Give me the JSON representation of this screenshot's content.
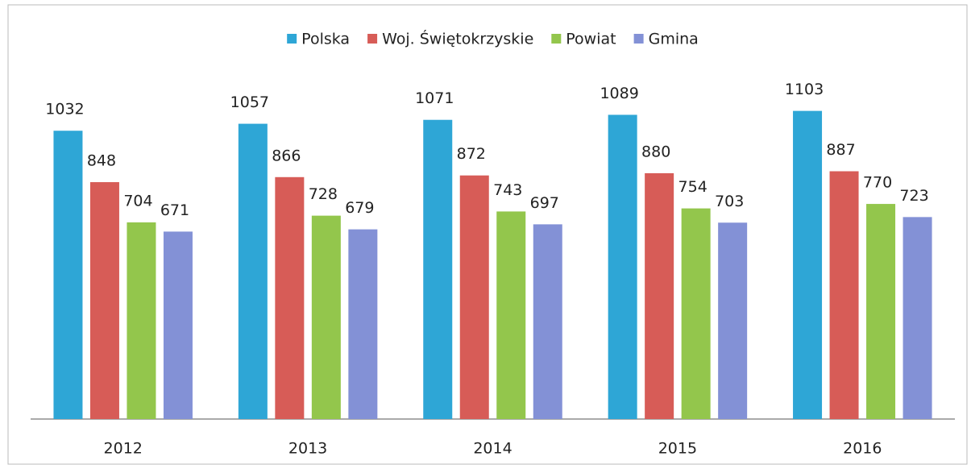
{
  "chart_data": {
    "type": "bar",
    "categories": [
      "2012",
      "2013",
      "2014",
      "2015",
      "2016"
    ],
    "series": [
      {
        "name": "Polska",
        "color": "#2ea6d6",
        "values": [
          1032,
          1057,
          1071,
          1089,
          1103
        ]
      },
      {
        "name": "Woj. Świętokrzyskie",
        "color": "#d75c57",
        "values": [
          848,
          866,
          872,
          880,
          887
        ]
      },
      {
        "name": "Powiat",
        "color": "#93c64c",
        "values": [
          704,
          728,
          743,
          754,
          770
        ]
      },
      {
        "name": "Gmina",
        "color": "#8391d6",
        "values": [
          671,
          679,
          697,
          703,
          723
        ]
      }
    ],
    "ylim": [
      0,
      1200
    ],
    "legend": "top"
  }
}
